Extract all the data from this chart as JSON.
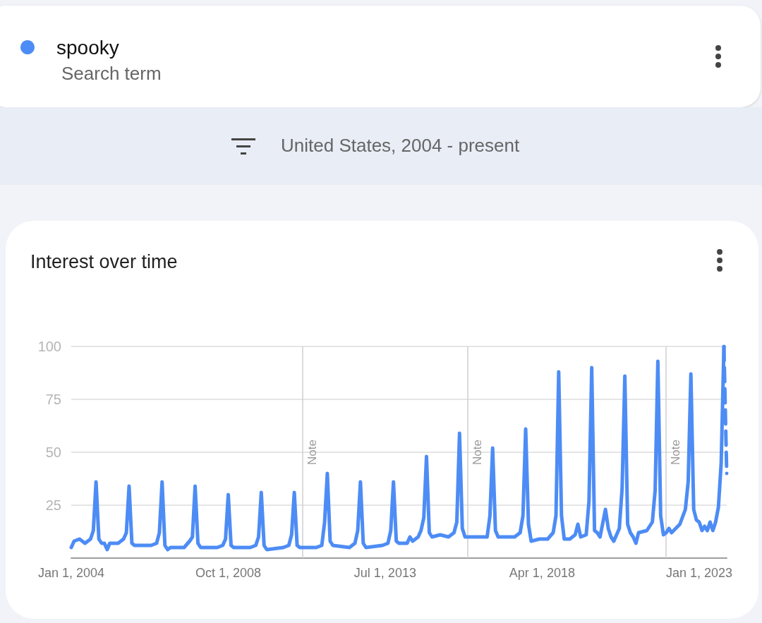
{
  "chart_data": {
    "type": "line",
    "title": "Interest over time",
    "annotations": [
      "Search term",
      "United States, 2004 - present"
    ],
    "legend": "top left",
    "grid": "y",
    "marker": "none",
    "line_style": "solid",
    "xlim": [
      "2004-01-01",
      "2023-11-01"
    ],
    "xticks": [
      {
        "value": "2004-01-01",
        "label": "Jan 1, 2004"
      },
      {
        "value": "2008-10-01",
        "label": "Oct 1, 2008"
      },
      {
        "value": "2013-07-01",
        "label": "Jul 1, 2013"
      },
      {
        "value": "2018-04-01",
        "label": "Apr 1, 2018"
      },
      {
        "value": "2023-01-01",
        "label": "Jan 1, 2023"
      }
    ],
    "ylim": [
      0,
      100
    ],
    "yticks": [
      25,
      50,
      75,
      100
    ],
    "ref_lines": [
      {
        "axis": "x",
        "value": "2011-01-01",
        "label": "Note"
      },
      {
        "axis": "x",
        "value": "2016-01-01",
        "label": "Note"
      },
      {
        "axis": "x",
        "value": "2022-01-01",
        "label": "Note"
      }
    ],
    "series": [
      {
        "name": "spooky",
        "color": "#4d8cf5",
        "x": [
          "2004-01",
          "2004-02",
          "2004-04",
          "2004-06",
          "2004-08",
          "2004-09",
          "2004-10",
          "2004-11",
          "2004-12",
          "2005-01",
          "2005-02",
          "2005-03",
          "2005-06",
          "2005-08",
          "2005-09",
          "2005-10",
          "2005-11",
          "2005-12",
          "2006-03",
          "2006-06",
          "2006-08",
          "2006-09",
          "2006-10",
          "2006-11",
          "2006-12",
          "2007-01",
          "2007-06",
          "2007-08",
          "2007-09",
          "2007-10",
          "2007-11",
          "2007-12",
          "2008-02",
          "2008-06",
          "2008-08",
          "2008-09",
          "2008-10",
          "2008-11",
          "2008-12",
          "2009-06",
          "2009-08",
          "2009-09",
          "2009-10",
          "2009-11",
          "2009-12",
          "2010-06",
          "2010-08",
          "2010-09",
          "2010-10",
          "2010-11",
          "2010-12",
          "2011-06",
          "2011-08",
          "2011-09",
          "2011-10",
          "2011-11",
          "2011-12",
          "2012-06",
          "2012-08",
          "2012-09",
          "2012-10",
          "2012-11",
          "2012-12",
          "2013-06",
          "2013-08",
          "2013-09",
          "2013-10",
          "2013-11",
          "2013-12",
          "2014-03",
          "2014-04",
          "2014-05",
          "2014-07",
          "2014-08",
          "2014-09",
          "2014-10",
          "2014-11",
          "2014-12",
          "2015-03",
          "2015-06",
          "2015-08",
          "2015-09",
          "2015-10",
          "2015-11",
          "2015-12",
          "2016-06",
          "2016-08",
          "2016-09",
          "2016-10",
          "2016-11",
          "2016-12",
          "2017-06",
          "2017-08",
          "2017-09",
          "2017-10",
          "2017-11",
          "2017-12",
          "2018-03",
          "2018-06",
          "2018-08",
          "2018-09",
          "2018-10",
          "2018-11",
          "2018-12",
          "2019-02",
          "2019-04",
          "2019-05",
          "2019-06",
          "2019-08",
          "2019-09",
          "2019-10",
          "2019-11",
          "2019-12",
          "2020-01",
          "2020-03",
          "2020-04",
          "2020-05",
          "2020-06",
          "2020-08",
          "2020-09",
          "2020-10",
          "2020-11",
          "2020-12",
          "2021-01",
          "2021-02",
          "2021-03",
          "2021-06",
          "2021-08",
          "2021-09",
          "2021-10",
          "2021-11",
          "2021-12",
          "2022-01",
          "2022-02",
          "2022-03",
          "2022-06",
          "2022-08",
          "2022-09",
          "2022-10",
          "2022-11",
          "2022-12",
          "2023-01",
          "2023-02",
          "2023-03",
          "2023-04",
          "2023-05",
          "2023-06",
          "2023-07",
          "2023-08",
          "2023-09",
          "2023-10"
        ],
        "values": [
          5,
          8,
          9,
          7,
          9,
          13,
          36,
          9,
          7,
          7,
          4,
          7,
          7,
          9,
          12,
          34,
          7,
          6,
          6,
          6,
          7,
          12,
          36,
          6,
          4,
          5,
          5,
          8,
          10,
          34,
          7,
          5,
          5,
          5,
          6,
          9,
          30,
          6,
          5,
          5,
          6,
          10,
          31,
          6,
          4,
          5,
          6,
          11,
          31,
          6,
          5,
          5,
          6,
          17,
          40,
          8,
          6,
          5,
          7,
          13,
          36,
          7,
          5,
          6,
          7,
          13,
          36,
          8,
          7,
          7,
          10,
          8,
          10,
          13,
          19,
          48,
          12,
          10,
          11,
          10,
          12,
          17,
          59,
          14,
          10,
          10,
          10,
          20,
          52,
          13,
          10,
          10,
          12,
          20,
          61,
          16,
          8,
          9,
          9,
          12,
          20,
          88,
          20,
          9,
          9,
          11,
          16,
          10,
          11,
          27,
          90,
          13,
          12,
          10,
          23,
          14,
          10,
          8,
          14,
          33,
          86,
          16,
          12,
          10,
          7,
          12,
          13,
          17,
          32,
          93,
          20,
          11,
          12,
          14,
          12,
          16,
          23,
          36,
          87,
          23,
          18,
          17,
          13,
          15,
          13,
          17,
          13,
          17,
          24,
          45,
          100
        ]
      },
      {
        "color": "#4d8cf5",
        "line_style": "dashed",
        "x": [
          "2023-10",
          "2023-11"
        ],
        "values": [
          100,
          40
        ]
      }
    ]
  }
}
